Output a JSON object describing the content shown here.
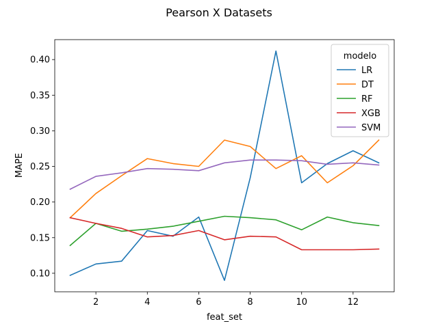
{
  "chart_data": {
    "type": "line",
    "title": "Pearson X Datasets",
    "xlabel": "feat_set",
    "ylabel": "MAPE",
    "x": [
      1,
      2,
      3,
      4,
      5,
      6,
      7,
      8,
      9,
      10,
      11,
      12,
      13
    ],
    "xlim": [
      0.4,
      13.6
    ],
    "ylim": [
      0.074,
      0.428
    ],
    "xticks": [
      2,
      4,
      6,
      8,
      10,
      12
    ],
    "yticks": [
      0.1,
      0.15,
      0.2,
      0.25,
      0.3,
      0.35,
      0.4
    ],
    "xtick_labels": [
      "2",
      "4",
      "6",
      "8",
      "10",
      "12"
    ],
    "ytick_labels": [
      "0.10",
      "0.15",
      "0.20",
      "0.25",
      "0.30",
      "0.35",
      "0.40"
    ],
    "grid": false,
    "legend": {
      "title": "modelo",
      "placement": "top-right"
    },
    "series": [
      {
        "name": "LR",
        "color": "#1f77b4",
        "values": [
          0.097,
          0.113,
          0.117,
          0.16,
          0.152,
          0.179,
          0.09,
          0.234,
          0.412,
          0.227,
          0.254,
          0.272,
          0.255
        ]
      },
      {
        "name": "DT",
        "color": "#ff7f0e",
        "values": [
          0.178,
          0.212,
          0.237,
          0.261,
          0.254,
          0.25,
          0.287,
          0.278,
          0.247,
          0.265,
          0.227,
          0.251,
          0.287
        ]
      },
      {
        "name": "RF",
        "color": "#2ca02c",
        "values": [
          0.139,
          0.17,
          0.159,
          0.162,
          0.166,
          0.173,
          0.18,
          0.178,
          0.175,
          0.161,
          0.179,
          0.171,
          0.167
        ]
      },
      {
        "name": "XGB",
        "color": "#d62728",
        "values": [
          0.178,
          0.17,
          0.163,
          0.151,
          0.153,
          0.16,
          0.147,
          0.152,
          0.151,
          0.133,
          0.133,
          0.133,
          0.134
        ]
      },
      {
        "name": "SVM",
        "color": "#9467bd",
        "values": [
          0.218,
          0.236,
          0.241,
          0.247,
          0.246,
          0.244,
          0.255,
          0.259,
          0.259,
          0.258,
          0.253,
          0.255,
          0.252
        ]
      }
    ]
  }
}
